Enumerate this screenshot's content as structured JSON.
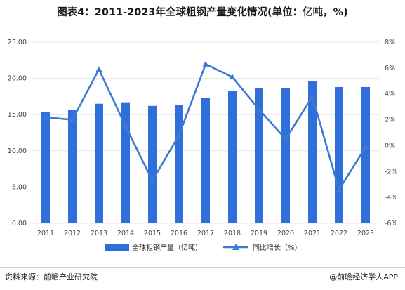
{
  "title": "图表4：2011-2023年全球粗钢产量变化情况(单位：亿吨，%)",
  "source": "资料来源：前瞻产业研究院",
  "brand": "@前瞻经济学人APP",
  "colors": {
    "bar": "#2f6fdc",
    "line": "#3c7ad1"
  },
  "chart_data": {
    "type": "bar",
    "categories": [
      "2011",
      "2012",
      "2013",
      "2014",
      "2015",
      "2016",
      "2017",
      "2018",
      "2019",
      "2020",
      "2021",
      "2022",
      "2023"
    ],
    "series": [
      {
        "name": "全球粗钢产量（亿吨）",
        "type": "bar",
        "axis": "left",
        "values": [
          15.4,
          15.6,
          16.5,
          16.7,
          16.2,
          16.3,
          17.3,
          18.3,
          18.7,
          18.7,
          19.6,
          18.8,
          18.8
        ]
      },
      {
        "name": "同比增长（%）",
        "type": "line",
        "axis": "right",
        "values": [
          2.2,
          2.0,
          5.9,
          1.5,
          -2.7,
          0.8,
          6.3,
          5.3,
          2.8,
          0.5,
          3.8,
          -3.4,
          -0.1
        ]
      }
    ],
    "left_axis": {
      "ylim": [
        0,
        25
      ],
      "ticks": [
        "0.00",
        "5.00",
        "10.00",
        "15.00",
        "20.00",
        "25.00"
      ]
    },
    "right_axis": {
      "ylim": [
        -6,
        8
      ],
      "ticks": [
        "-6%",
        "-4%",
        "-2%",
        "0%",
        "2%",
        "4%",
        "6%",
        "8%"
      ]
    },
    "legend_position": "bottom"
  }
}
